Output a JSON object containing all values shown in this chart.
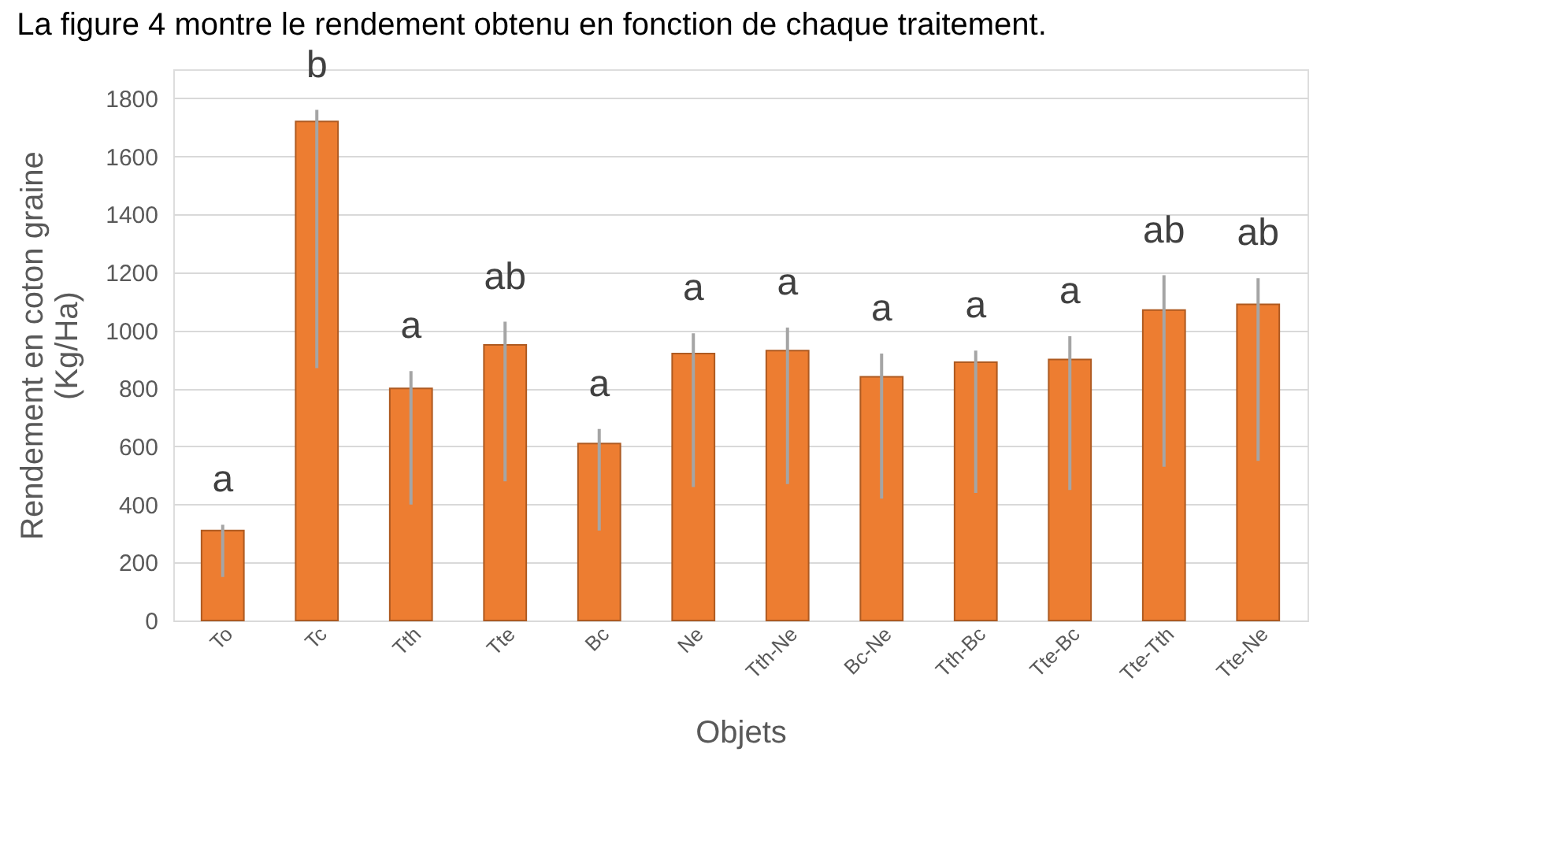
{
  "chart_data": {
    "type": "bar",
    "categories": [
      "To",
      "Tc",
      "Tth",
      "Tte",
      "Bc",
      "Ne",
      "Tth-Ne",
      "Bc-Ne",
      "Tth-Bc",
      "Tte-Bc",
      "Tte-Tth",
      "Tte-Ne"
    ],
    "values": [
      310,
      1720,
      800,
      950,
      610,
      920,
      930,
      840,
      890,
      900,
      1070,
      1090
    ],
    "color": "#ed7d31",
    "errors": [
      [
        150,
        330
      ],
      [
        870,
        1760
      ],
      [
        400,
        860
      ],
      [
        480,
        1030
      ],
      [
        310,
        660
      ],
      [
        460,
        990
      ],
      [
        470,
        1010
      ],
      [
        420,
        920
      ],
      [
        440,
        930
      ],
      [
        450,
        980
      ],
      [
        530,
        1190
      ],
      [
        550,
        1180
      ]
    ],
    "xlabel": "Objets",
    "ylabel": "Rendement en coton graine\n(Kg/Ha)",
    "ylim": [
      0,
      1900
    ],
    "yticks": [
      0,
      200,
      400,
      600,
      800,
      1000,
      1200,
      1400,
      1600,
      1800
    ],
    "grid": "y",
    "annotations": [
      "La figure 4 montre le rendement obtenu en fonction de chaque traitement.",
      {
        "text": "a",
        "x": "To",
        "y": 330
      },
      {
        "text": "b",
        "x": "Tc",
        "y": 1760
      },
      {
        "text": "a",
        "x": "Tth",
        "y": 860
      },
      {
        "text": "ab",
        "x": "Tte",
        "y": 1030
      },
      {
        "text": "a",
        "x": "Bc",
        "y": 660
      },
      {
        "text": "a",
        "x": "Ne",
        "y": 990
      },
      {
        "text": "a",
        "x": "Tth-Ne",
        "y": 1010
      },
      {
        "text": "a",
        "x": "Bc-Ne",
        "y": 920
      },
      {
        "text": "a",
        "x": "Tth-Bc",
        "y": 930
      },
      {
        "text": "a",
        "x": "Tte-Bc",
        "y": 980
      },
      {
        "text": "ab",
        "x": "Tte-Tth",
        "y": 1190
      },
      {
        "text": "ab",
        "x": "Tte-Ne",
        "y": 1180
      }
    ]
  }
}
